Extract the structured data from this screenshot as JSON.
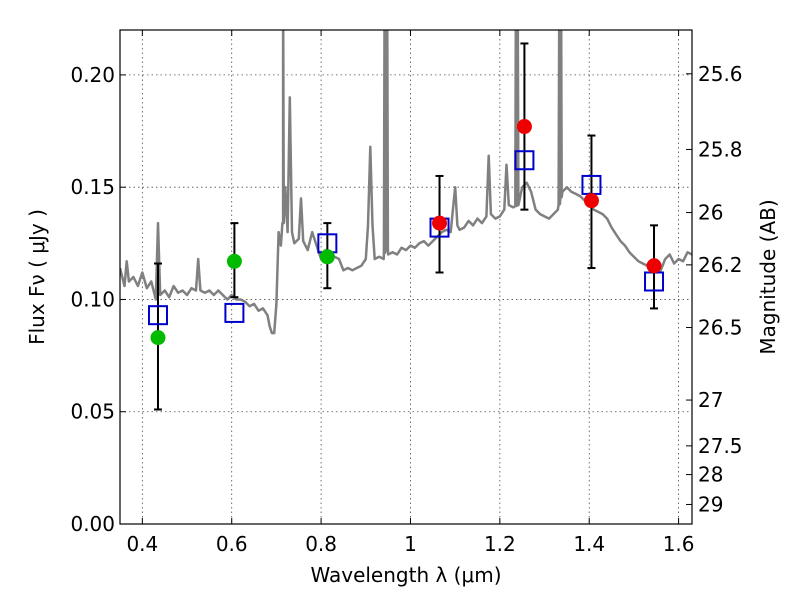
{
  "chart_data": {
    "type": "scatter",
    "title": "",
    "xlabel": "Wavelength  λ (μm)",
    "ylabel": "Flux  Fν  ( μJy )",
    "y2label": "Magnitude (AB)",
    "xlim": [
      0.35,
      1.63
    ],
    "ylim": [
      0.0,
      0.22
    ],
    "x_ticks": [
      0.4,
      0.6,
      0.8,
      1.0,
      1.2,
      1.4,
      1.6
    ],
    "x_tick_labels": [
      "0.4",
      "0.6",
      "0.8",
      "1",
      "1.2",
      "1.4",
      "1.6"
    ],
    "y_ticks": [
      0.0,
      0.05,
      0.1,
      0.15,
      0.2
    ],
    "y_tick_labels": [
      "0.00",
      "0.05",
      "0.10",
      "0.15",
      "0.20"
    ],
    "y2_ticks": [
      {
        "label": "25.6",
        "flux": 0.2005
      },
      {
        "label": "25.8",
        "flux": 0.1668
      },
      {
        "label": "26",
        "flux": 0.1387
      },
      {
        "label": "26.2",
        "flux": 0.1154
      },
      {
        "label": "26.5",
        "flux": 0.0875
      },
      {
        "label": "27",
        "flux": 0.0552
      },
      {
        "label": "27.5",
        "flux": 0.0348
      },
      {
        "label": "28",
        "flux": 0.022
      },
      {
        "label": "29",
        "flux": 0.0087
      }
    ],
    "grid": true,
    "colors": {
      "model": "#808080",
      "green": "#00bb00",
      "red": "#ee0000",
      "square": "#0000cc",
      "errorbar": "#000000"
    },
    "series": [
      {
        "kind": "model-spectrum",
        "points": [
          [
            0.35,
            0.114
          ],
          [
            0.36,
            0.106
          ],
          [
            0.365,
            0.117
          ],
          [
            0.37,
            0.108
          ],
          [
            0.38,
            0.11
          ],
          [
            0.39,
            0.106
          ],
          [
            0.4,
            0.112
          ],
          [
            0.41,
            0.105
          ],
          [
            0.42,
            0.108
          ],
          [
            0.43,
            0.1
          ],
          [
            0.435,
            0.134
          ],
          [
            0.44,
            0.102
          ],
          [
            0.45,
            0.104
          ],
          [
            0.46,
            0.101
          ],
          [
            0.47,
            0.106
          ],
          [
            0.48,
            0.103
          ],
          [
            0.49,
            0.104
          ],
          [
            0.5,
            0.102
          ],
          [
            0.51,
            0.105
          ],
          [
            0.52,
            0.104
          ],
          [
            0.525,
            0.118
          ],
          [
            0.53,
            0.104
          ],
          [
            0.54,
            0.103
          ],
          [
            0.55,
            0.104
          ],
          [
            0.56,
            0.102
          ],
          [
            0.57,
            0.104
          ],
          [
            0.58,
            0.102
          ],
          [
            0.59,
            0.1
          ],
          [
            0.6,
            0.102
          ],
          [
            0.61,
            0.1
          ],
          [
            0.62,
            0.1
          ],
          [
            0.63,
            0.099
          ],
          [
            0.64,
            0.097
          ],
          [
            0.65,
            0.098
          ],
          [
            0.66,
            0.095
          ],
          [
            0.67,
            0.096
          ],
          [
            0.68,
            0.093
          ],
          [
            0.685,
            0.088
          ],
          [
            0.69,
            0.085
          ],
          [
            0.695,
            0.085
          ],
          [
            0.7,
            0.098
          ],
          [
            0.705,
            0.13
          ],
          [
            0.71,
            0.124
          ],
          [
            0.715,
            0.134
          ],
          [
            0.72,
            0.15
          ],
          [
            0.725,
            0.13
          ],
          [
            0.73,
            0.19
          ],
          [
            0.735,
            0.13
          ],
          [
            0.74,
            0.125
          ],
          [
            0.75,
            0.127
          ],
          [
            0.755,
            0.145
          ],
          [
            0.76,
            0.126
          ],
          [
            0.77,
            0.122
          ],
          [
            0.78,
            0.13
          ],
          [
            0.79,
            0.124
          ],
          [
            0.8,
            0.118
          ],
          [
            0.81,
            0.122
          ],
          [
            0.82,
            0.117
          ],
          [
            0.83,
            0.119
          ],
          [
            0.84,
            0.118
          ],
          [
            0.85,
            0.113
          ],
          [
            0.86,
            0.114
          ],
          [
            0.87,
            0.113
          ],
          [
            0.88,
            0.114
          ],
          [
            0.89,
            0.115
          ],
          [
            0.9,
            0.118
          ],
          [
            0.905,
            0.133
          ],
          [
            0.91,
            0.168
          ],
          [
            0.915,
            0.133
          ],
          [
            0.92,
            0.118
          ],
          [
            0.93,
            0.119
          ],
          [
            0.94,
            0.118
          ],
          [
            0.945,
            0.125
          ],
          [
            0.95,
            0.12
          ],
          [
            0.96,
            0.121
          ],
          [
            0.97,
            0.12
          ],
          [
            0.98,
            0.123
          ],
          [
            0.99,
            0.122
          ],
          [
            1.0,
            0.124
          ],
          [
            1.01,
            0.123
          ],
          [
            1.02,
            0.125
          ],
          [
            1.03,
            0.126
          ],
          [
            1.04,
            0.124
          ],
          [
            1.05,
            0.126
          ],
          [
            1.06,
            0.128
          ],
          [
            1.07,
            0.13
          ],
          [
            1.08,
            0.131
          ],
          [
            1.09,
            0.13
          ],
          [
            1.095,
            0.14
          ],
          [
            1.1,
            0.15
          ],
          [
            1.105,
            0.133
          ],
          [
            1.11,
            0.131
          ],
          [
            1.12,
            0.132
          ],
          [
            1.13,
            0.135
          ],
          [
            1.14,
            0.133
          ],
          [
            1.15,
            0.136
          ],
          [
            1.16,
            0.134
          ],
          [
            1.17,
            0.137
          ],
          [
            1.175,
            0.164
          ],
          [
            1.18,
            0.138
          ],
          [
            1.19,
            0.136
          ],
          [
            1.2,
            0.137
          ],
          [
            1.21,
            0.14
          ],
          [
            1.215,
            0.16
          ],
          [
            1.22,
            0.142
          ],
          [
            1.23,
            0.141
          ],
          [
            1.24,
            0.142
          ],
          [
            1.25,
            0.15
          ],
          [
            1.26,
            0.152
          ],
          [
            1.27,
            0.148
          ],
          [
            1.28,
            0.14
          ],
          [
            1.29,
            0.138
          ],
          [
            1.3,
            0.137
          ],
          [
            1.31,
            0.136
          ],
          [
            1.32,
            0.138
          ],
          [
            1.33,
            0.14
          ],
          [
            1.34,
            0.148
          ],
          [
            1.35,
            0.15
          ],
          [
            1.36,
            0.148
          ],
          [
            1.37,
            0.147
          ],
          [
            1.38,
            0.146
          ],
          [
            1.39,
            0.144
          ],
          [
            1.4,
            0.142
          ],
          [
            1.41,
            0.14
          ],
          [
            1.42,
            0.139
          ],
          [
            1.43,
            0.138
          ],
          [
            1.44,
            0.136
          ],
          [
            1.45,
            0.132
          ],
          [
            1.46,
            0.129
          ],
          [
            1.47,
            0.126
          ],
          [
            1.48,
            0.124
          ],
          [
            1.49,
            0.121
          ],
          [
            1.5,
            0.119
          ],
          [
            1.51,
            0.117
          ],
          [
            1.52,
            0.116
          ],
          [
            1.53,
            0.115
          ],
          [
            1.54,
            0.114
          ],
          [
            1.55,
            0.112
          ],
          [
            1.56,
            0.113
          ],
          [
            1.57,
            0.118
          ],
          [
            1.58,
            0.12
          ],
          [
            1.59,
            0.116
          ],
          [
            1.6,
            0.118
          ],
          [
            1.61,
            0.117
          ],
          [
            1.62,
            0.121
          ],
          [
            1.63,
            0.12
          ]
        ],
        "spikes": [
          [
            0.715,
            0.22
          ],
          [
            0.942,
            0.22
          ],
          [
            0.948,
            0.22
          ],
          [
            1.236,
            0.22
          ],
          [
            1.24,
            0.22
          ],
          [
            1.333,
            0.22
          ],
          [
            1.337,
            0.22
          ]
        ]
      },
      {
        "kind": "observed",
        "points": [
          {
            "x": 0.435,
            "y": 0.083,
            "ylo": 0.051,
            "yhi": 0.116,
            "color": "green"
          },
          {
            "x": 0.606,
            "y": 0.117,
            "ylo": 0.101,
            "yhi": 0.134,
            "color": "green"
          },
          {
            "x": 0.814,
            "y": 0.119,
            "ylo": 0.105,
            "yhi": 0.134,
            "color": "green"
          },
          {
            "x": 1.065,
            "y": 0.134,
            "ylo": 0.112,
            "yhi": 0.155,
            "color": "red"
          },
          {
            "x": 1.255,
            "y": 0.177,
            "ylo": 0.14,
            "yhi": 0.214,
            "color": "red"
          },
          {
            "x": 1.405,
            "y": 0.144,
            "ylo": 0.114,
            "yhi": 0.173,
            "color": "red"
          },
          {
            "x": 1.545,
            "y": 0.115,
            "ylo": 0.096,
            "yhi": 0.133,
            "color": "red"
          }
        ]
      },
      {
        "kind": "model-photometry",
        "points": [
          {
            "x": 0.435,
            "y": 0.093
          },
          {
            "x": 0.606,
            "y": 0.094
          },
          {
            "x": 0.814,
            "y": 0.125
          },
          {
            "x": 1.065,
            "y": 0.132
          },
          {
            "x": 1.255,
            "y": 0.162
          },
          {
            "x": 1.405,
            "y": 0.151
          },
          {
            "x": 1.545,
            "y": 0.108
          }
        ]
      }
    ]
  }
}
